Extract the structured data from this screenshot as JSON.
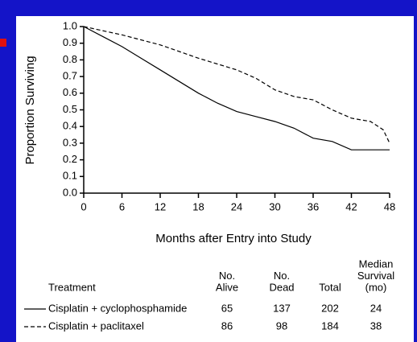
{
  "chart_data": {
    "type": "line",
    "x_label": "Months after Entry into Study",
    "y_label": "Proportion Surviving",
    "xlim": [
      0,
      48
    ],
    "ylim": [
      0,
      1
    ],
    "xticks": [
      0,
      6,
      12,
      18,
      24,
      30,
      36,
      42,
      48
    ],
    "yticks": [
      {
        "value": 0,
        "label": "0.0"
      },
      0.1,
      0.2,
      0.3,
      0.4,
      0.5,
      0.6,
      0.7,
      0.8,
      0.9,
      {
        "value": 1,
        "label": "1.0"
      }
    ],
    "series": [
      {
        "name": "Cisplatin + cyclophosphamide",
        "color": "#000000",
        "dash": "solid",
        "x": [
          0,
          3,
          6,
          9,
          12,
          15,
          18,
          21,
          24,
          27,
          30,
          33,
          36,
          39,
          42,
          48
        ],
        "values": [
          1.0,
          0.94,
          0.88,
          0.81,
          0.74,
          0.67,
          0.6,
          0.54,
          0.49,
          0.46,
          0.43,
          0.39,
          0.33,
          0.31,
          0.26,
          0.26
        ]
      },
      {
        "name": "Cisplatin + paclitaxel",
        "color": "#000000",
        "dash": "dashed",
        "x": [
          0,
          6,
          12,
          18,
          24,
          27,
          30,
          33,
          36,
          39,
          42,
          45,
          47,
          48
        ],
        "values": [
          1.0,
          0.95,
          0.89,
          0.81,
          0.74,
          0.69,
          0.62,
          0.58,
          0.56,
          0.5,
          0.45,
          0.43,
          0.38,
          0.3
        ]
      }
    ],
    "table": {
      "columns": [
        [
          "Treatment"
        ],
        [
          "No.",
          "Alive"
        ],
        [
          "No.",
          "Dead"
        ],
        [
          "Total"
        ],
        [
          "Median",
          "Survival",
          "(mo)"
        ]
      ],
      "rows": [
        [
          65,
          137,
          202,
          24
        ],
        [
          86,
          98,
          184,
          38
        ]
      ]
    }
  }
}
